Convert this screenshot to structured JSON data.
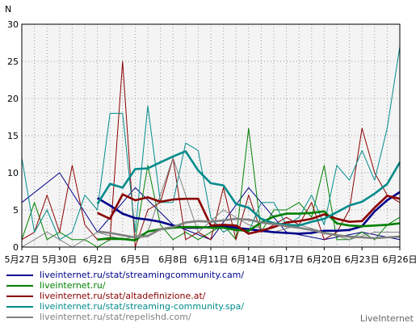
{
  "chart_data": {
    "type": "line",
    "ylabel": "N",
    "ylim": [
      0,
      30
    ],
    "yticks": [
      0,
      5,
      10,
      15,
      20,
      25,
      30
    ],
    "grid": true,
    "xticks": [
      "5月27日",
      "5月30日",
      "6月2日",
      "6月5日",
      "6月8日",
      "6月11日",
      "6月14日",
      "6月17日",
      "6月20日",
      "6月23日",
      "6月26日"
    ],
    "legend_position": "bottom",
    "series": [
      {
        "name": "liveinternet.ru/stat/streamingcommunity.cam/",
        "color": "#00008b",
        "style": "thin",
        "x": [
          0,
          3,
          6,
          9,
          12,
          15,
          18,
          21,
          24,
          27,
          30
        ],
        "values": [
          6,
          10,
          2,
          8,
          3,
          1,
          8,
          2,
          1,
          2,
          1
        ]
      },
      {
        "name": "liveinternet.ru/stat/streamingcommunity.cam/",
        "color": "#00008b",
        "style": "thick",
        "x": [
          6,
          7,
          8,
          9,
          10,
          11,
          12,
          13,
          14,
          15,
          16,
          17,
          18,
          19,
          20,
          21,
          22,
          23,
          24,
          25,
          26,
          27,
          28,
          29,
          30
        ],
        "values": [
          6.6,
          5.6,
          4.5,
          3.9,
          3.7,
          3.4,
          2.9,
          2.6,
          2.6,
          2.7,
          2.8,
          2.6,
          2.4,
          2.2,
          2.0,
          1.9,
          1.8,
          1.9,
          2.2,
          2.2,
          2.3,
          2.8,
          4.8,
          6.3,
          7.4
        ]
      },
      {
        "name": "liveinternet.ru/",
        "color": "#008000",
        "style": "thin",
        "x": [
          0,
          1,
          2,
          3,
          4,
          5,
          6,
          7,
          8,
          9,
          10,
          11,
          12,
          13,
          14,
          15,
          16,
          17,
          18,
          19,
          20,
          21,
          22,
          23,
          24,
          25,
          26,
          27,
          28,
          29,
          30
        ],
        "values": [
          1,
          6,
          1,
          2,
          1,
          1,
          0,
          1,
          1,
          1,
          11,
          3,
          1,
          2,
          1,
          2,
          3,
          1,
          16,
          2,
          5,
          5,
          6,
          4,
          11,
          1,
          1,
          2,
          1,
          3,
          4
        ]
      },
      {
        "name": "liveinternet.ru/",
        "color": "#008000",
        "style": "thick",
        "x": [
          6,
          7,
          8,
          9,
          10,
          11,
          12,
          13,
          14,
          15,
          16,
          17,
          18,
          19,
          20,
          21,
          22,
          23,
          24,
          25,
          26,
          27,
          28,
          29,
          30
        ],
        "values": [
          1.0,
          1.2,
          1.1,
          0.9,
          2.1,
          2.4,
          2.6,
          2.7,
          2.7,
          2.6,
          2.6,
          2.3,
          2.2,
          3.3,
          4.1,
          4.5,
          4.5,
          4.6,
          4.8,
          3.2,
          2.9,
          2.8,
          2.9,
          3.0,
          3.2
        ]
      },
      {
        "name": "liveinternet.ru/stat/altadefinizione.at/",
        "color": "#8b0000",
        "style": "thin",
        "x": [
          0,
          1,
          2,
          3,
          4,
          5,
          6,
          7,
          8,
          9,
          10,
          11,
          12,
          13,
          14,
          15,
          16,
          17,
          18,
          19,
          20,
          21,
          22,
          23,
          24,
          25,
          26,
          27,
          28,
          29,
          30
        ],
        "values": [
          1,
          2,
          7,
          2,
          11,
          3,
          1,
          1,
          25,
          0,
          5,
          6,
          12,
          1,
          2,
          1,
          8,
          1,
          7,
          2,
          3,
          4,
          3,
          6,
          1,
          2,
          5,
          16,
          10,
          7,
          6
        ]
      },
      {
        "name": "liveinternet.ru/stat/altadefinizione.at/",
        "color": "#8b0000",
        "style": "thick",
        "x": [
          6,
          7,
          8,
          9,
          10,
          11,
          12,
          13,
          14,
          15,
          16,
          17,
          18,
          19,
          20,
          21,
          22,
          23,
          24,
          25,
          26,
          27,
          28,
          29,
          30
        ],
        "values": [
          4.6,
          3.8,
          7.1,
          6.3,
          6.7,
          6.1,
          6.4,
          6.5,
          6.5,
          2.9,
          3.0,
          2.9,
          1.8,
          2.2,
          2.7,
          3.3,
          3.5,
          3.8,
          4.4,
          3.8,
          3.4,
          3.5,
          5.3,
          6.9,
          6.5
        ]
      },
      {
        "name": "liveinternet.ru/stat/streaming-community.spa/",
        "color": "#008b8b",
        "style": "thin",
        "x": [
          0,
          1,
          2,
          3,
          4,
          5,
          6,
          7,
          8,
          9,
          10,
          11,
          12,
          13,
          14,
          15,
          16,
          17,
          18,
          19,
          20,
          21,
          22,
          23,
          24,
          25,
          26,
          27,
          28,
          29,
          30
        ],
        "values": [
          12,
          2,
          5,
          1,
          2,
          7,
          5,
          18,
          18,
          2,
          19,
          6,
          6,
          14,
          13,
          4,
          2,
          3,
          2,
          6,
          6,
          3,
          4,
          7,
          3,
          11,
          9,
          13,
          9,
          16,
          27
        ]
      },
      {
        "name": "liveinternet.ru/stat/streaming-community.spa/",
        "color": "#008b8b",
        "style": "thick",
        "x": [
          6,
          7,
          8,
          9,
          10,
          11,
          12,
          13,
          14,
          15,
          16,
          17,
          18,
          19,
          20,
          21,
          22,
          23,
          24,
          25,
          26,
          27,
          28,
          29,
          30
        ],
        "values": [
          5.8,
          8.5,
          8.0,
          10.5,
          10.6,
          11.4,
          12.2,
          12.9,
          10.3,
          8.6,
          8.3,
          5.8,
          5.3,
          3.8,
          3.2,
          3.0,
          2.9,
          3.4,
          3.8,
          4.7,
          5.6,
          6.1,
          7.2,
          8.5,
          11.4
        ]
      },
      {
        "name": "liveinternet.ru/stat/repelishd.com/",
        "color": "#808080",
        "style": "thin",
        "x": [
          0,
          2,
          4,
          6,
          8,
          10,
          12,
          14,
          16,
          18,
          20,
          22,
          24,
          26,
          28,
          30
        ],
        "values": [
          0,
          2,
          0,
          2,
          1,
          2,
          12,
          2,
          5,
          3,
          2,
          3,
          2,
          1,
          2,
          2
        ]
      },
      {
        "name": "liveinternet.ru/stat/repelishd.com/",
        "color": "#808080",
        "style": "thick",
        "x": [
          6,
          7,
          8,
          9,
          10,
          11,
          12,
          13,
          14,
          15,
          16,
          17,
          18,
          19,
          20,
          21,
          22,
          23,
          24,
          25,
          26,
          27,
          28,
          29,
          30
        ],
        "values": [
          2.1,
          1.9,
          1.6,
          1.3,
          1.5,
          2.4,
          2.7,
          3.3,
          3.5,
          3.4,
          3.6,
          3.8,
          3.7,
          3.3,
          3.1,
          2.8,
          2.6,
          2.3,
          1.9,
          1.6,
          1.4,
          1.3,
          1.2,
          1.3,
          1.4
        ]
      }
    ]
  },
  "legend": [
    {
      "label": "liveinternet.ru/stat/streamingcommunity.cam/",
      "color": "#00008b"
    },
    {
      "label": "liveinternet.ru/",
      "color": "#008000"
    },
    {
      "label": "liveinternet.ru/stat/altadefinizione.at/",
      "color": "#8b0000"
    },
    {
      "label": "liveinternet.ru/stat/streaming-community.spa/",
      "color": "#008b8b"
    },
    {
      "label": "liveinternet.ru/stat/repelishd.com/",
      "color": "#808080"
    }
  ],
  "brand": "LiveInternet"
}
